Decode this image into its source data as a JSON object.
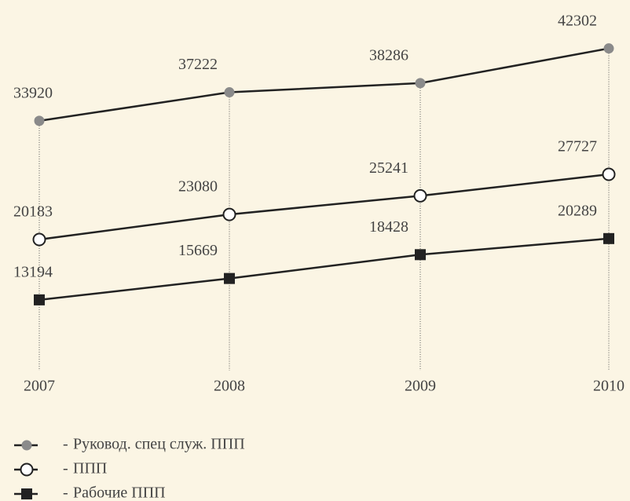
{
  "chart_data": {
    "type": "line",
    "categories": [
      "2007",
      "2008",
      "2009",
      "2010"
    ],
    "series": [
      {
        "name": "Руковод. спец служ. ППП",
        "color": "#8a8a8a",
        "marker": "filled-circle",
        "values": [
          33920,
          37222,
          38286,
          42302
        ]
      },
      {
        "name": "ППП",
        "color": "#ffffff",
        "marker": "open-circle",
        "values": [
          20183,
          23080,
          25241,
          27727
        ]
      },
      {
        "name": "Рабочие ППП",
        "color": "#222222",
        "marker": "square",
        "values": [
          13194,
          15669,
          18428,
          20289
        ]
      }
    ],
    "ylim": [
      5000,
      45000
    ],
    "legend": "bottom-left"
  }
}
